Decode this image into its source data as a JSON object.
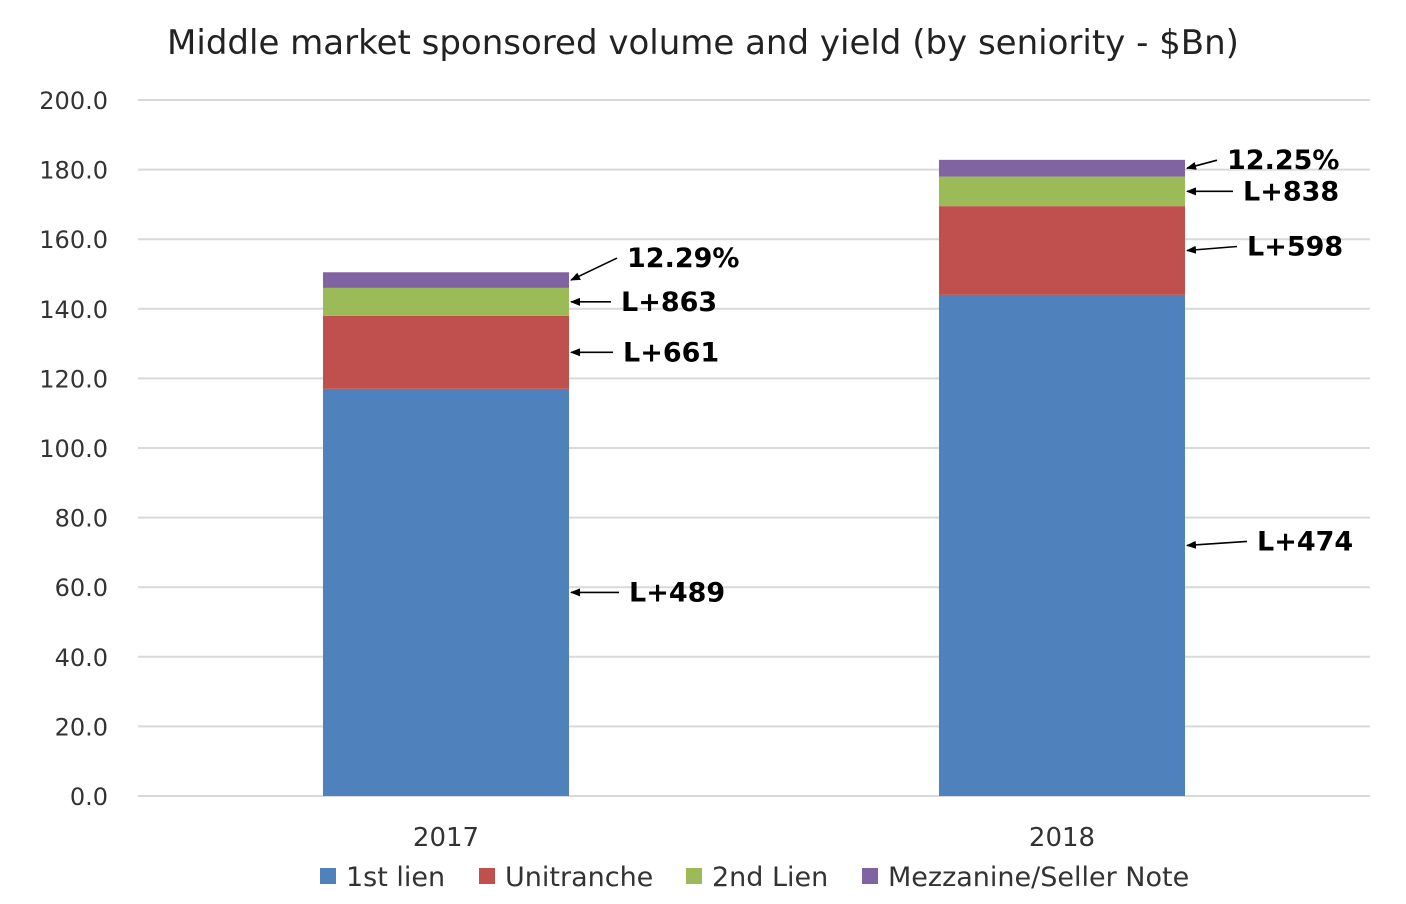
{
  "chart_data": {
    "type": "bar",
    "stacked": true,
    "title": "Middle market sponsored volume and yield (by seniority - $Bn)",
    "xlabel": "",
    "ylabel": "",
    "categories": [
      "2017",
      "2018"
    ],
    "ylim": [
      0,
      200
    ],
    "yticks": [
      0,
      20,
      40,
      60,
      80,
      100,
      120,
      140,
      160,
      180,
      200
    ],
    "ytick_labels": [
      "0.0",
      "20.0",
      "40.0",
      "60.0",
      "80.0",
      "100.0",
      "120.0",
      "140.0",
      "160.0",
      "180.0",
      "200.0"
    ],
    "grid": true,
    "legend_position": "bottom",
    "series": [
      {
        "name": "1st lien",
        "color": "#4F81BD",
        "values": [
          117,
          144
        ],
        "labels": [
          "L+489",
          "L+474"
        ]
      },
      {
        "name": "Unitranche",
        "color": "#C0504D",
        "values": [
          21,
          25.5
        ],
        "labels": [
          "L+661",
          "L+598"
        ]
      },
      {
        "name": "2nd Lien",
        "color": "#9BBB59",
        "values": [
          8,
          8.5
        ],
        "labels": [
          "L+863",
          "L+838"
        ]
      },
      {
        "name": "Mezzanine/Seller Note",
        "color": "#8064A2",
        "values": [
          4.5,
          4.8
        ],
        "labels": [
          "12.29%",
          "12.25%"
        ]
      }
    ]
  }
}
